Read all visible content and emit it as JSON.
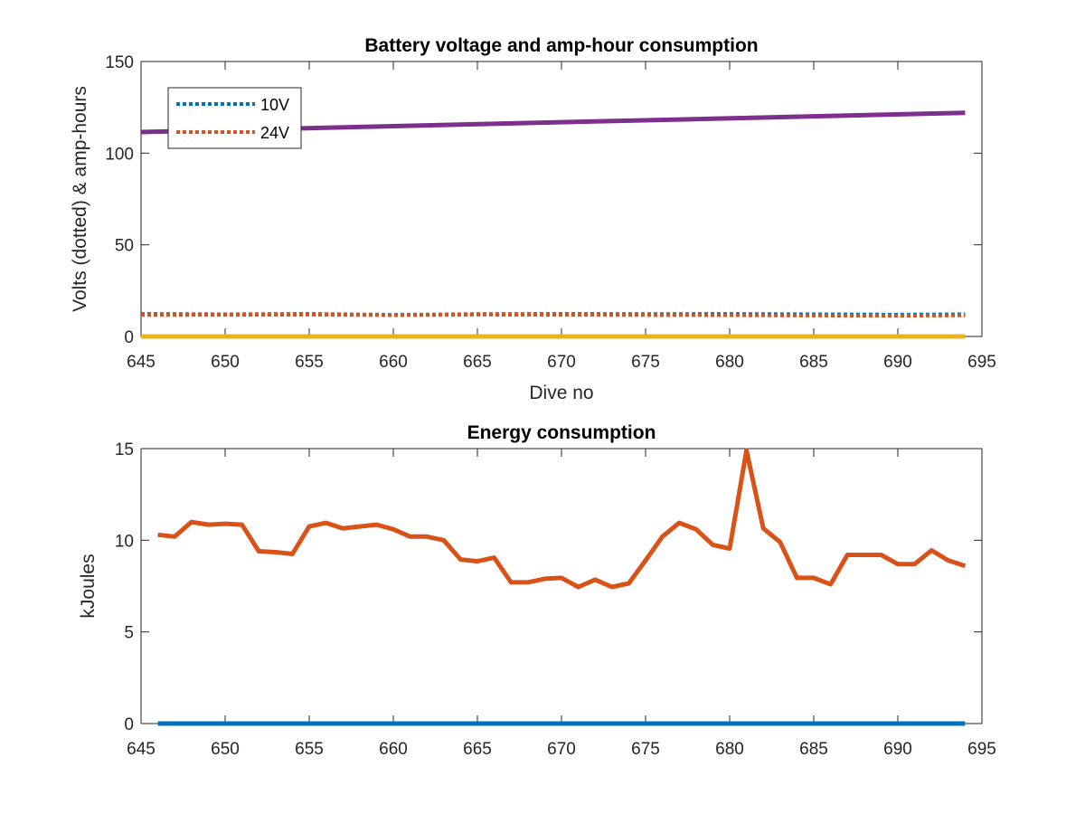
{
  "chart_data": [
    {
      "type": "line",
      "title": "Battery voltage and amp-hour consumption",
      "xlabel": "Dive no",
      "ylabel": "Volts (dotted) & amp-hours",
      "xlim": [
        645,
        695
      ],
      "ylim": [
        0,
        150
      ],
      "xticks": [
        645,
        650,
        655,
        660,
        665,
        670,
        675,
        680,
        685,
        690,
        695
      ],
      "yticks": [
        0,
        50,
        100,
        150
      ],
      "grid": false,
      "legend_position": "top-left",
      "series": [
        {
          "name": "10V",
          "style": "dotted",
          "color": "#0072BD",
          "x": [
            645,
            650,
            655,
            660,
            665,
            670,
            675,
            680,
            685,
            690,
            694
          ],
          "y": [
            12.3,
            12.1,
            12.3,
            11.8,
            12.2,
            12.3,
            12.2,
            12.3,
            12.1,
            11.9,
            12.1
          ]
        },
        {
          "name": "24V",
          "style": "dotted",
          "color": "#D95319",
          "x": [
            645,
            650,
            655,
            660,
            665,
            670,
            675,
            680,
            685,
            690,
            694
          ],
          "y": [
            11.7,
            11.8,
            11.9,
            11.6,
            11.9,
            11.8,
            11.7,
            11.6,
            11.4,
            11.3,
            11.5
          ]
        },
        {
          "style": "solid",
          "color": "#7E2F8E",
          "x": [
            645,
            694
          ],
          "y": [
            111.5,
            122
          ]
        },
        {
          "style": "solid",
          "color": "#EDB120",
          "x": [
            645,
            694
          ],
          "y": [
            0,
            0
          ]
        }
      ]
    },
    {
      "type": "line",
      "title": "Energy consumption",
      "xlabel": "",
      "ylabel": "kJoules",
      "xlim": [
        645,
        695
      ],
      "ylim": [
        0,
        15
      ],
      "xticks": [
        645,
        650,
        655,
        660,
        665,
        670,
        675,
        680,
        685,
        690,
        695
      ],
      "yticks": [
        0,
        5,
        10,
        15
      ],
      "grid": false,
      "series": [
        {
          "style": "solid",
          "color": "#D95319",
          "x": [
            646,
            647,
            648,
            649,
            650,
            651,
            652,
            653,
            654,
            655,
            656,
            657,
            658,
            659,
            660,
            661,
            662,
            663,
            664,
            665,
            666,
            667,
            668,
            669,
            670,
            671,
            672,
            673,
            674,
            675,
            676,
            677,
            678,
            679,
            680,
            681,
            682,
            683,
            684,
            685,
            686,
            687,
            688,
            689,
            690,
            691,
            692,
            693,
            694
          ],
          "y": [
            10.3,
            10.2,
            11.0,
            10.85,
            10.9,
            10.85,
            9.4,
            9.35,
            9.25,
            10.75,
            10.95,
            10.65,
            10.75,
            10.85,
            10.6,
            10.2,
            10.2,
            10.0,
            8.95,
            8.85,
            9.05,
            7.7,
            7.7,
            7.9,
            7.95,
            7.45,
            7.85,
            7.45,
            7.65,
            8.9,
            10.2,
            10.95,
            10.6,
            9.75,
            9.55,
            14.9,
            10.65,
            9.9,
            7.95,
            7.95,
            7.6,
            9.2,
            9.2,
            9.2,
            8.7,
            8.7,
            9.45,
            8.9,
            8.6
          ]
        },
        {
          "style": "solid",
          "color": "#0072BD",
          "x": [
            646,
            694
          ],
          "y": [
            0,
            0
          ]
        }
      ]
    }
  ]
}
